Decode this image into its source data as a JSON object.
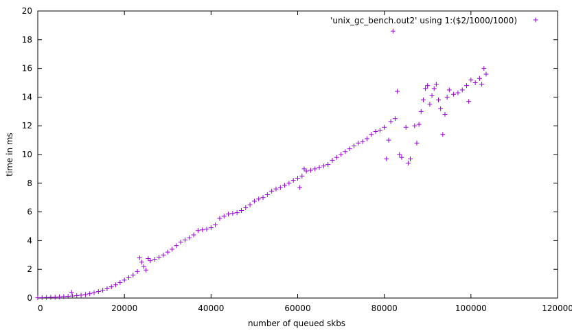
{
  "chart_data": {
    "type": "scatter",
    "xlabel": "number of queued skbs",
    "ylabel": "time in ms",
    "xlim": [
      0,
      120000
    ],
    "ylim": [
      0,
      20
    ],
    "xticks": [
      0,
      20000,
      40000,
      60000,
      80000,
      100000,
      120000
    ],
    "xtick_labels": [
      "0",
      "20000",
      "40000",
      "60000",
      "80000",
      "100000",
      "120000"
    ],
    "yticks": [
      0,
      2,
      4,
      6,
      8,
      10,
      12,
      14,
      16,
      18,
      20
    ],
    "ytick_labels": [
      "0",
      "2",
      "4",
      "6",
      "8",
      "10",
      "12",
      "14",
      "16",
      "18",
      "20"
    ],
    "grid": false,
    "legend_position": "top-right",
    "marker": "+",
    "series": [
      {
        "name": "'unix_gc_bench.out2' using 1:($2/1000/1000)",
        "color": "#9400d3",
        "points": [
          [
            0,
            0.02
          ],
          [
            1000,
            0.03
          ],
          [
            2000,
            0.04
          ],
          [
            3000,
            0.05
          ],
          [
            4000,
            0.06
          ],
          [
            5000,
            0.08
          ],
          [
            6000,
            0.1
          ],
          [
            7000,
            0.12
          ],
          [
            7800,
            0.4
          ],
          [
            8000,
            0.14
          ],
          [
            9000,
            0.17
          ],
          [
            10000,
            0.2
          ],
          [
            11000,
            0.24
          ],
          [
            12000,
            0.3
          ],
          [
            13000,
            0.37
          ],
          [
            14000,
            0.45
          ],
          [
            15000,
            0.55
          ],
          [
            16000,
            0.65
          ],
          [
            17000,
            0.78
          ],
          [
            18000,
            0.92
          ],
          [
            19000,
            1.08
          ],
          [
            20000,
            1.25
          ],
          [
            21000,
            1.42
          ],
          [
            22000,
            1.6
          ],
          [
            23000,
            1.85
          ],
          [
            23500,
            2.8
          ],
          [
            24000,
            2.5
          ],
          [
            24500,
            2.2
          ],
          [
            25000,
            1.95
          ],
          [
            25500,
            2.75
          ],
          [
            26000,
            2.6
          ],
          [
            27000,
            2.7
          ],
          [
            28000,
            2.85
          ],
          [
            29000,
            3.0
          ],
          [
            30000,
            3.2
          ],
          [
            31000,
            3.4
          ],
          [
            32000,
            3.65
          ],
          [
            33000,
            3.9
          ],
          [
            34000,
            4.05
          ],
          [
            35000,
            4.2
          ],
          [
            36000,
            4.4
          ],
          [
            37000,
            4.7
          ],
          [
            38000,
            4.75
          ],
          [
            39000,
            4.8
          ],
          [
            40000,
            4.9
          ],
          [
            41000,
            5.1
          ],
          [
            42000,
            5.55
          ],
          [
            43000,
            5.7
          ],
          [
            44000,
            5.85
          ],
          [
            45000,
            5.9
          ],
          [
            46000,
            5.95
          ],
          [
            47000,
            6.1
          ],
          [
            48000,
            6.3
          ],
          [
            49000,
            6.5
          ],
          [
            50000,
            6.75
          ],
          [
            51000,
            6.9
          ],
          [
            52000,
            7.0
          ],
          [
            53000,
            7.2
          ],
          [
            54000,
            7.45
          ],
          [
            55000,
            7.6
          ],
          [
            56000,
            7.7
          ],
          [
            57000,
            7.85
          ],
          [
            58000,
            8.0
          ],
          [
            59000,
            8.2
          ],
          [
            60000,
            8.35
          ],
          [
            60500,
            7.7
          ],
          [
            61000,
            8.5
          ],
          [
            61500,
            9.0
          ],
          [
            62000,
            8.85
          ],
          [
            63000,
            8.9
          ],
          [
            64000,
            9.0
          ],
          [
            65000,
            9.1
          ],
          [
            66000,
            9.2
          ],
          [
            67000,
            9.3
          ],
          [
            68000,
            9.6
          ],
          [
            69000,
            9.8
          ],
          [
            70000,
            10.0
          ],
          [
            71000,
            10.2
          ],
          [
            72000,
            10.4
          ],
          [
            73000,
            10.6
          ],
          [
            74000,
            10.8
          ],
          [
            75000,
            10.9
          ],
          [
            76000,
            11.1
          ],
          [
            77000,
            11.4
          ],
          [
            78000,
            11.6
          ],
          [
            79000,
            11.7
          ],
          [
            80000,
            11.9
          ],
          [
            80500,
            9.7
          ],
          [
            81000,
            11.0
          ],
          [
            81500,
            12.3
          ],
          [
            82000,
            18.6
          ],
          [
            82500,
            12.5
          ],
          [
            83000,
            14.4
          ],
          [
            83500,
            10.0
          ],
          [
            84000,
            9.8
          ],
          [
            85000,
            11.9
          ],
          [
            85500,
            9.4
          ],
          [
            86000,
            9.7
          ],
          [
            87000,
            12.0
          ],
          [
            87500,
            10.8
          ],
          [
            88000,
            12.1
          ],
          [
            88500,
            13.0
          ],
          [
            89000,
            13.8
          ],
          [
            89500,
            14.6
          ],
          [
            90000,
            14.8
          ],
          [
            90500,
            13.5
          ],
          [
            91000,
            14.1
          ],
          [
            91500,
            14.6
          ],
          [
            92000,
            14.9
          ],
          [
            92500,
            13.8
          ],
          [
            93000,
            13.2
          ],
          [
            93500,
            11.4
          ],
          [
            94000,
            12.8
          ],
          [
            94500,
            14.0
          ],
          [
            95000,
            14.5
          ],
          [
            96000,
            14.2
          ],
          [
            97000,
            14.3
          ],
          [
            98000,
            14.5
          ],
          [
            99000,
            14.8
          ],
          [
            99500,
            13.7
          ],
          [
            100000,
            15.2
          ],
          [
            101000,
            15.0
          ],
          [
            102000,
            15.3
          ],
          [
            102500,
            14.9
          ],
          [
            103000,
            16.0
          ],
          [
            103500,
            15.6
          ]
        ]
      }
    ]
  }
}
